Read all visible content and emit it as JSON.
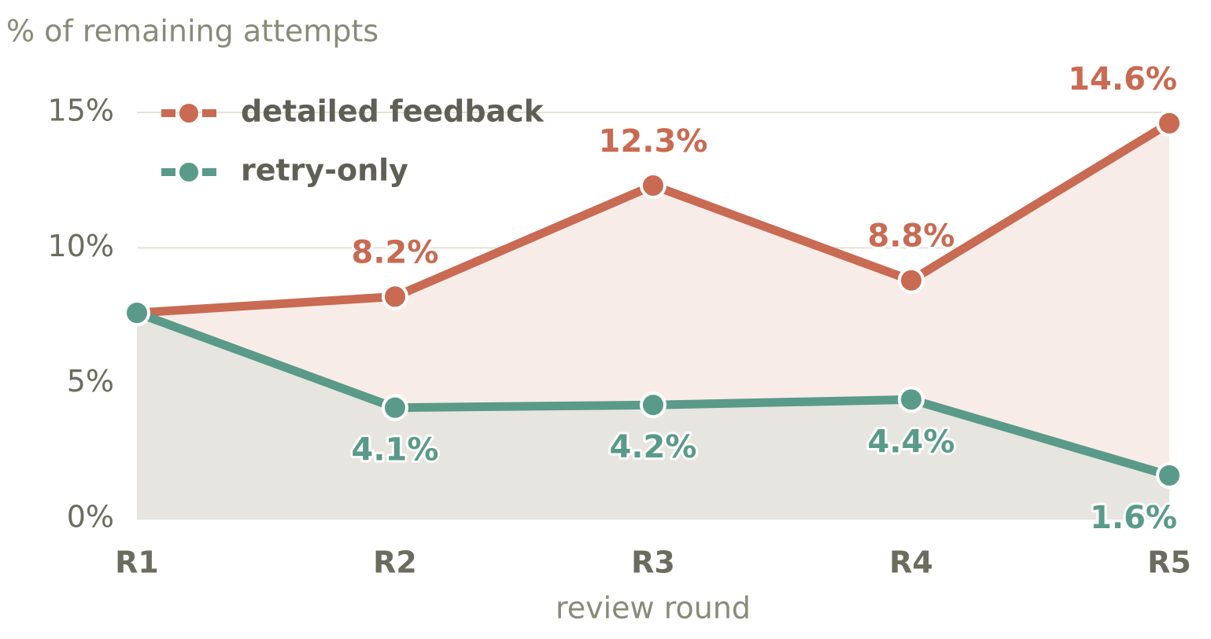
{
  "chart_data": {
    "type": "line",
    "y_axis_title": "% of remaining attempts",
    "x_axis_title": "review round",
    "categories": [
      "R1",
      "R2",
      "R3",
      "R4",
      "R5"
    ],
    "series": [
      {
        "name": "detailed feedback",
        "color": "#c96a52",
        "area_color": "#f8ece8",
        "values": [
          7.6,
          8.2,
          12.3,
          8.8,
          14.6
        ],
        "value_labels": [
          null,
          "8.2%",
          "12.3%",
          "8.8%",
          "14.6%"
        ],
        "label_position": "above"
      },
      {
        "name": "retry-only",
        "color": "#5a9a88",
        "area_color": "#e6e5df",
        "values": [
          7.6,
          4.1,
          4.2,
          4.4,
          1.6
        ],
        "value_labels": [
          null,
          "4.1%",
          "4.2%",
          "4.4%",
          "1.6%"
        ],
        "label_position": "below"
      }
    ],
    "ylim": [
      0,
      15
    ],
    "yticks": [
      {
        "value": 0,
        "label": "0%"
      },
      {
        "value": 5,
        "label": "5%"
      },
      {
        "value": 10,
        "label": "10%"
      },
      {
        "value": 15,
        "label": "15%"
      }
    ],
    "grid": true,
    "legend": "upper left"
  }
}
